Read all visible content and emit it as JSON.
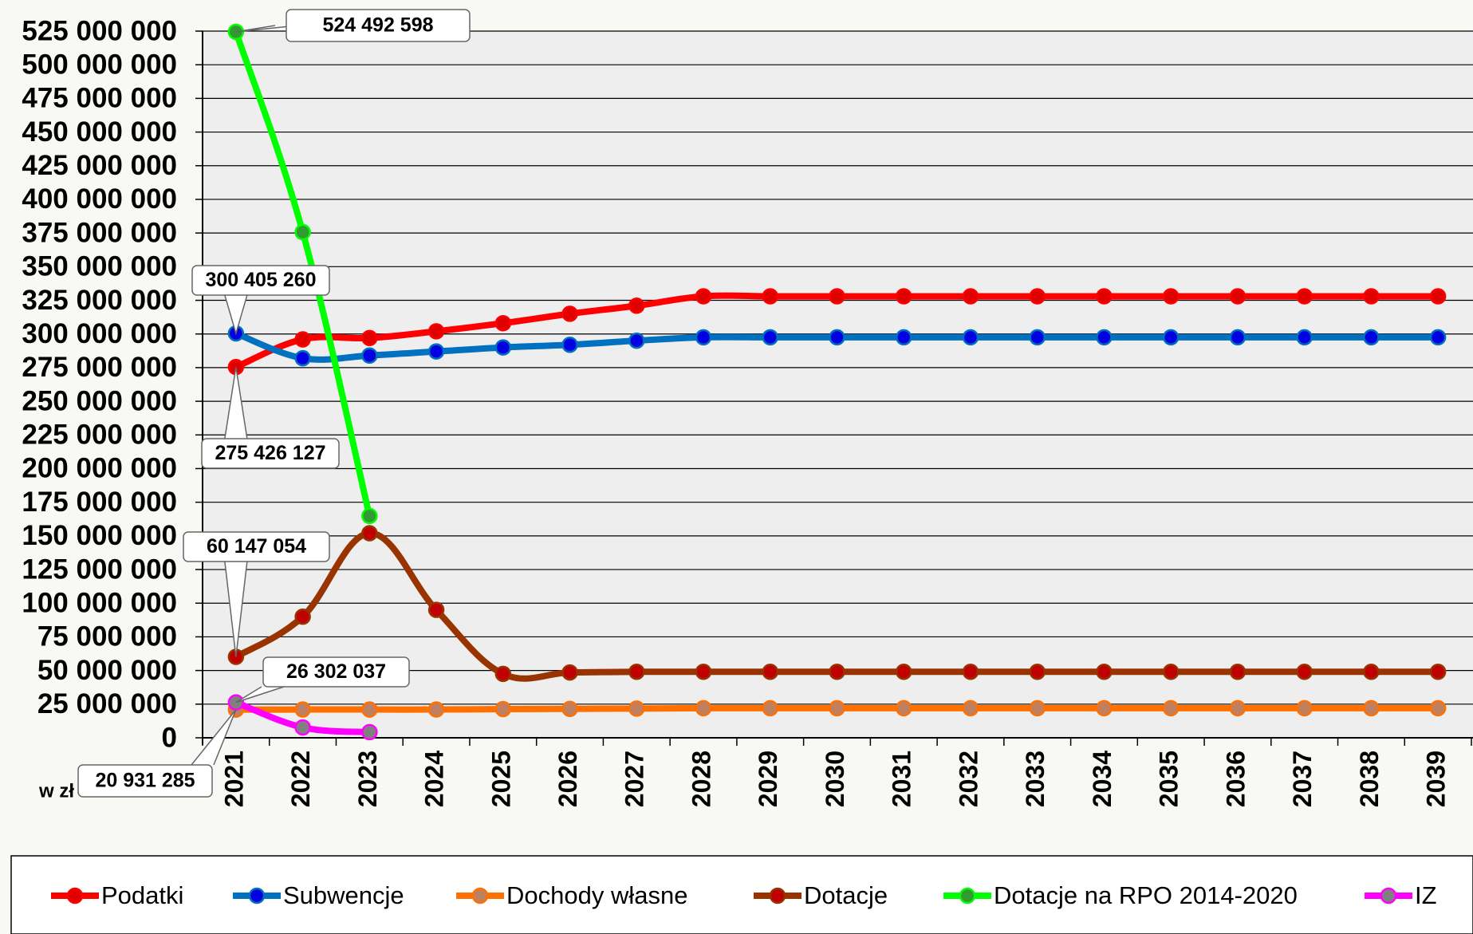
{
  "chart_data": {
    "type": "line",
    "y_axis_label": "w zł",
    "categories": [
      "2021",
      "2022",
      "2023",
      "2024",
      "2025",
      "2026",
      "2027",
      "2028",
      "2029",
      "2030",
      "2031",
      "2032",
      "2033",
      "2034",
      "2035",
      "2036",
      "2037",
      "2038",
      "2039"
    ],
    "ylim": [
      0,
      525000000
    ],
    "yticks": [
      0,
      {
        "value": 25000000,
        "label": "25 000 000"
      },
      {
        "value": 50000000,
        "label": "50 000 000"
      },
      {
        "value": 75000000,
        "label": "75 000 000"
      },
      {
        "value": 100000000,
        "label": "100 000 000"
      },
      {
        "value": 125000000,
        "label": "125 000 000"
      },
      {
        "value": 150000000,
        "label": "150 000 000"
      },
      {
        "value": 175000000,
        "label": "175 000 000"
      },
      {
        "value": 200000000,
        "label": "200 000 000"
      },
      {
        "value": 225000000,
        "label": "225 000 000"
      },
      {
        "value": 250000000,
        "label": "250 000 000"
      },
      {
        "value": 275000000,
        "label": "275 000 000"
      },
      {
        "value": 300000000,
        "label": "300 000 000"
      },
      {
        "value": 325000000,
        "label": "325 000 000"
      },
      {
        "value": 350000000,
        "label": "350 000 000"
      },
      {
        "value": 375000000,
        "label": "375 000 000"
      },
      {
        "value": 400000000,
        "label": "400 000 000"
      },
      {
        "value": 425000000,
        "label": "425 000 000"
      },
      {
        "value": 450000000,
        "label": "450 000 000"
      },
      {
        "value": 475000000,
        "label": "475 000 000"
      },
      {
        "value": 500000000,
        "label": "500 000 000"
      },
      {
        "value": 525000000,
        "label": "525 000 000"
      }
    ],
    "grid": true,
    "legend": "bottom",
    "series": [
      {
        "name": "Podatki",
        "color": "#ff0000",
        "marker_color": "#e00000",
        "values": [
          275426127,
          296000000,
          297000000,
          302000000,
          308000000,
          315000000,
          321000000,
          328000000,
          328000000,
          328000000,
          328000000,
          328000000,
          328000000,
          328000000,
          328000000,
          328000000,
          328000000,
          328000000,
          328000000
        ],
        "value_labels": [
          "275 426 127",
          null,
          null,
          null,
          null,
          null,
          null,
          null,
          null,
          null,
          null,
          null,
          null,
          null,
          null,
          null,
          null,
          null,
          null
        ]
      },
      {
        "name": "Subwencje",
        "color": "#0070c0",
        "marker_color": "#0000e0",
        "values": [
          300405260,
          282000000,
          284000000,
          287000000,
          290000000,
          292000000,
          295000000,
          297500000,
          297500000,
          297500000,
          297500000,
          297500000,
          297500000,
          297500000,
          297500000,
          297500000,
          297500000,
          297500000,
          297500000
        ],
        "value_labels": [
          "300 405 260",
          null,
          null,
          null,
          null,
          null,
          null,
          null,
          null,
          null,
          null,
          null,
          null,
          null,
          null,
          null,
          null,
          null,
          null
        ]
      },
      {
        "name": "Dochody własne",
        "color": "#ff7000",
        "marker_color": "#c08060",
        "values": [
          20931285,
          21000000,
          21000000,
          21000000,
          21300000,
          21500000,
          21700000,
          22000000,
          22000000,
          22000000,
          22000000,
          22000000,
          22000000,
          22000000,
          22000000,
          22000000,
          22000000,
          22000000,
          22000000
        ],
        "value_labels": [
          "20 931 285",
          null,
          null,
          null,
          null,
          null,
          null,
          null,
          null,
          null,
          null,
          null,
          null,
          null,
          null,
          null,
          null,
          null,
          null
        ]
      },
      {
        "name": "Dotacje",
        "color": "#993300",
        "marker_color": "#c00000",
        "values": [
          60147054,
          90000000,
          152000000,
          95000000,
          47500000,
          48500000,
          49000000,
          49000000,
          49000000,
          49000000,
          49000000,
          49000000,
          49000000,
          49000000,
          49000000,
          49000000,
          49000000,
          49000000,
          49000000
        ],
        "value_labels": [
          "60 147 054",
          null,
          null,
          null,
          null,
          null,
          null,
          null,
          null,
          null,
          null,
          null,
          null,
          null,
          null,
          null,
          null,
          null,
          null
        ]
      },
      {
        "name": "Dotacje na RPO 2014-2020",
        "color": "#00ff00",
        "marker_color": "#339933",
        "values": [
          524492598,
          375700000,
          164800000,
          null,
          null,
          null,
          null,
          null,
          null,
          null,
          null,
          null,
          null,
          null,
          null,
          null,
          null,
          null,
          null
        ],
        "value_labels": [
          "524 492 598",
          null,
          null,
          null,
          null,
          null,
          null,
          null,
          null,
          null,
          null,
          null,
          null,
          null,
          null,
          null,
          null,
          null,
          null
        ]
      },
      {
        "name": "IZ",
        "color": "#ff00ff",
        "marker_color": "#808080",
        "values": [
          26302037,
          7700000,
          4200000,
          null,
          null,
          null,
          null,
          null,
          null,
          null,
          null,
          null,
          null,
          null,
          null,
          null,
          null,
          null,
          null
        ],
        "value_labels": [
          "26 302 037",
          null,
          null,
          null,
          null,
          null,
          null,
          null,
          null,
          null,
          null,
          null,
          null,
          null,
          null,
          null,
          null,
          null,
          null
        ]
      }
    ]
  }
}
